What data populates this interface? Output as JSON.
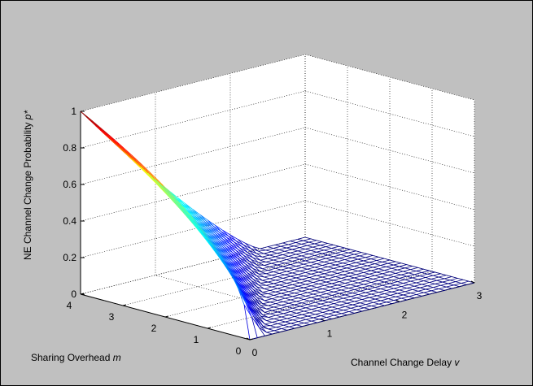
{
  "chart_data": {
    "type": "surface",
    "title": "",
    "xlabel": "Channel Change Delay v",
    "ylabel": "Sharing Overhead m",
    "zlabel": "NE Channel Change Probability p*",
    "xlabel_parts": {
      "text": "Channel Change Delay ",
      "symbol": "v"
    },
    "ylabel_parts": {
      "text": "Sharing Overhead ",
      "symbol": "m"
    },
    "zlabel_parts": {
      "text": "NE Channel Change Probability ",
      "symbol": "p*"
    },
    "xlim": [
      0,
      3
    ],
    "ylim": [
      0,
      4
    ],
    "zlim": [
      0,
      1
    ],
    "xticks": [
      "0",
      "1",
      "2",
      "3"
    ],
    "yticks": [
      "0",
      "1",
      "2",
      "3",
      "4"
    ],
    "zticks": [
      "0",
      "0.2",
      "0.4",
      "0.6",
      "0.8",
      "1"
    ],
    "grid": true,
    "colormap": "jet",
    "surface_description": "p* = 1 at m = 4, v = 0; decreases as m decreases toward 0 along v = 0 (about 0.5 near m = 0.5); for v > 0 p* drops, reaching 0 for v greater than roughly m/2 to m (flat region at p* = 0)",
    "background_color": "#c0c0c0",
    "axes_color": "#ffffff"
  }
}
